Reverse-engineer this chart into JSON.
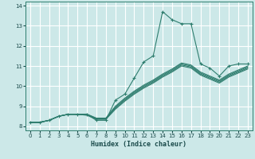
{
  "xlabel": "Humidex (Indice chaleur)",
  "bg_color": "#cce8e8",
  "grid_color": "#ffffff",
  "line_color": "#2e7d6e",
  "xlim": [
    -0.5,
    23.5
  ],
  "ylim": [
    7.8,
    14.2
  ],
  "xticks": [
    0,
    1,
    2,
    3,
    4,
    5,
    6,
    7,
    8,
    9,
    10,
    11,
    12,
    13,
    14,
    15,
    16,
    17,
    18,
    19,
    20,
    21,
    22,
    23
  ],
  "yticks": [
    8,
    9,
    10,
    11,
    12,
    13,
    14
  ],
  "series_main": [
    8.2,
    8.2,
    8.3,
    8.5,
    8.6,
    8.6,
    8.6,
    8.3,
    8.3,
    9.3,
    9.6,
    10.4,
    11.2,
    11.5,
    13.7,
    13.3,
    13.1,
    13.1,
    11.1,
    10.9,
    10.5,
    11.0,
    11.1,
    11.1
  ],
  "series_band": [
    [
      8.2,
      8.2,
      8.3,
      8.5,
      8.6,
      8.6,
      8.55,
      8.35,
      8.35,
      8.85,
      9.25,
      9.6,
      9.9,
      10.15,
      10.45,
      10.7,
      11.0,
      10.9,
      10.55,
      10.35,
      10.15,
      10.45,
      10.65,
      10.85
    ],
    [
      8.2,
      8.2,
      8.3,
      8.5,
      8.6,
      8.6,
      8.57,
      8.37,
      8.37,
      8.9,
      9.3,
      9.65,
      9.95,
      10.2,
      10.5,
      10.75,
      11.05,
      10.95,
      10.6,
      10.4,
      10.2,
      10.5,
      10.7,
      10.9
    ],
    [
      8.2,
      8.2,
      8.3,
      8.5,
      8.6,
      8.6,
      8.59,
      8.39,
      8.39,
      8.95,
      9.35,
      9.7,
      10.0,
      10.25,
      10.55,
      10.8,
      11.1,
      11.0,
      10.65,
      10.45,
      10.25,
      10.55,
      10.75,
      10.95
    ],
    [
      8.2,
      8.2,
      8.3,
      8.5,
      8.6,
      8.6,
      8.61,
      8.41,
      8.41,
      9.0,
      9.4,
      9.75,
      10.05,
      10.3,
      10.6,
      10.85,
      11.15,
      11.05,
      10.7,
      10.5,
      10.3,
      10.6,
      10.8,
      11.0
    ]
  ]
}
